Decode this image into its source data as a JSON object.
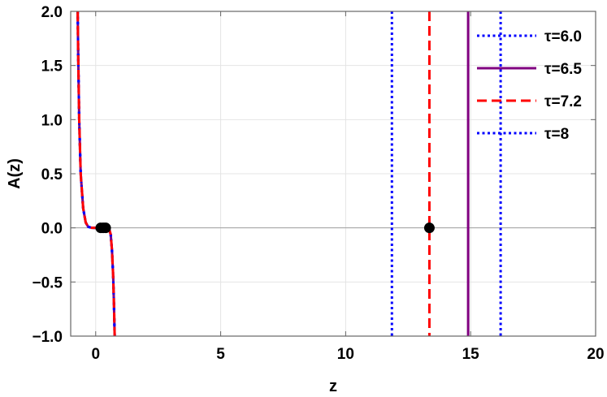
{
  "chart_data": {
    "type": "line",
    "title": "",
    "xlabel": "z",
    "ylabel": "A(z)",
    "xlim": [
      -1,
      20
    ],
    "ylim": [
      -1,
      2
    ],
    "grid": true,
    "legend_placement": "top-right",
    "xticks": [
      0,
      5,
      10,
      15,
      20
    ],
    "xtick_labels": [
      "0",
      "5",
      "10",
      "15",
      "20"
    ],
    "yticks": [
      -1.0,
      -0.5,
      0.0,
      0.5,
      1.0,
      1.5,
      2.0
    ],
    "ytick_labels": [
      "−1.0",
      "−0.5",
      "0.0",
      "0.5",
      "1.0",
      "1.5",
      "2.0"
    ],
    "series": [
      {
        "name": "τ=6.0",
        "color": "#0000ff",
        "style": "dotted",
        "x": [
          -0.72,
          -0.7,
          -0.66,
          -0.6,
          -0.5,
          -0.4,
          -0.3,
          -0.15,
          0.0,
          0.15,
          0.3,
          0.45,
          0.55,
          0.6,
          0.65,
          0.7,
          0.73,
          0.75,
          0.76
        ],
        "y": [
          2.0,
          1.6,
          1.0,
          0.5,
          0.18,
          0.05,
          0.01,
          0.0,
          0.0,
          0.0,
          0.0,
          0.0,
          -0.02,
          -0.06,
          -0.2,
          -0.45,
          -0.7,
          -0.9,
          -1.0
        ],
        "asymptote_x": 11.85
      },
      {
        "name": "τ=6.5",
        "color": "#800080",
        "style": "solid",
        "x": [
          -0.72,
          -0.7,
          -0.66,
          -0.6,
          -0.5,
          -0.4,
          -0.3,
          -0.15,
          0.0,
          0.15,
          0.3,
          0.45,
          0.55,
          0.6,
          0.65,
          0.7,
          0.73,
          0.75,
          0.76
        ],
        "y": [
          2.0,
          1.6,
          1.0,
          0.5,
          0.18,
          0.05,
          0.01,
          0.0,
          0.0,
          0.0,
          0.0,
          0.0,
          -0.02,
          -0.06,
          -0.2,
          -0.45,
          -0.7,
          -0.9,
          -1.0
        ],
        "asymptote_x": 14.9
      },
      {
        "name": "τ=7.2",
        "color": "#ff0000",
        "style": "dashed",
        "x": [
          -0.72,
          -0.7,
          -0.66,
          -0.6,
          -0.5,
          -0.4,
          -0.3,
          -0.15,
          0.0,
          0.15,
          0.3,
          0.45,
          0.55,
          0.6,
          0.65,
          0.7,
          0.73,
          0.75,
          0.76
        ],
        "y": [
          2.0,
          1.6,
          1.0,
          0.5,
          0.18,
          0.05,
          0.01,
          0.0,
          0.0,
          0.0,
          0.0,
          0.0,
          -0.02,
          -0.06,
          -0.2,
          -0.45,
          -0.7,
          -0.9,
          -1.0
        ],
        "asymptote_x": 13.35
      },
      {
        "name": "τ=8",
        "color": "#0000ff",
        "style": "dotted",
        "x": [
          -0.72,
          -0.7,
          -0.66,
          -0.6,
          -0.5,
          -0.4,
          -0.3,
          -0.15,
          0.0,
          0.15,
          0.3,
          0.45,
          0.55,
          0.6,
          0.65,
          0.7,
          0.73,
          0.75,
          0.76
        ],
        "y": [
          2.0,
          1.6,
          1.0,
          0.5,
          0.18,
          0.05,
          0.01,
          0.0,
          0.0,
          0.0,
          0.0,
          0.0,
          -0.02,
          -0.06,
          -0.2,
          -0.45,
          -0.7,
          -0.9,
          -1.0
        ],
        "asymptote_x": 16.2
      }
    ],
    "markers": [
      {
        "x": 0.2,
        "y": 0.0,
        "color": "#000000"
      },
      {
        "x": 0.3,
        "y": 0.0,
        "color": "#000000"
      },
      {
        "x": 0.4,
        "y": 0.0,
        "color": "#000000"
      },
      {
        "x": 13.35,
        "y": 0.0,
        "color": "#000000"
      }
    ]
  }
}
